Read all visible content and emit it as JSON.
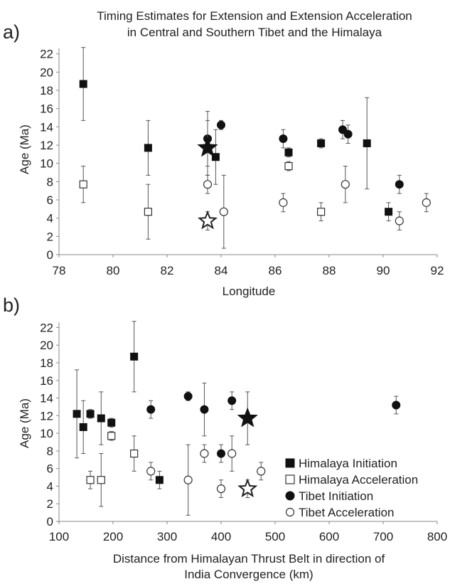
{
  "title": [
    "Timing Estimates for Extension and Extension Acceleration",
    "in Central and Southern Tibet and the Himalaya"
  ],
  "legend": [
    "Himalaya Initiation",
    "Himalaya Acceleration",
    "Tibet Initiation",
    "Tibet Acceleration"
  ],
  "chart_data": [
    {
      "panel": "a)",
      "type": "scatter",
      "xlabel": "Longitude",
      "ylabel": "Age (Ma)",
      "xlim": [
        78,
        92
      ],
      "ylim": [
        0,
        22.6
      ],
      "xticks": [
        78,
        80,
        82,
        84,
        86,
        88,
        90,
        92
      ],
      "yticks": [
        0,
        2,
        4,
        6,
        8,
        10,
        12,
        14,
        16,
        18,
        20,
        22
      ],
      "grid": false,
      "series": [
        {
          "name": "Himalaya Initiation",
          "marker": "square-filled",
          "points": [
            {
              "x": 78.9,
              "y": 18.7,
              "lo": 14.7,
              "hi": 22.7
            },
            {
              "x": 81.3,
              "y": 11.7,
              "lo": 8.7,
              "hi": 14.7
            },
            {
              "x": 83.8,
              "y": 10.7,
              "lo": 7.7,
              "hi": 13.7
            },
            {
              "x": 86.5,
              "y": 11.2,
              "lo": 10.7,
              "hi": 11.7
            },
            {
              "x": 87.7,
              "y": 12.2,
              "lo": 11.7,
              "hi": 12.7
            },
            {
              "x": 89.4,
              "y": 12.2,
              "lo": 7.2,
              "hi": 17.2
            },
            {
              "x": 90.2,
              "y": 4.7,
              "lo": 3.7,
              "hi": 5.7
            }
          ]
        },
        {
          "name": "Himalaya Acceleration",
          "marker": "square-open",
          "points": [
            {
              "x": 78.9,
              "y": 7.7,
              "lo": 5.7,
              "hi": 9.7
            },
            {
              "x": 81.3,
              "y": 4.7,
              "lo": 1.7,
              "hi": 7.7
            },
            {
              "x": 86.5,
              "y": 9.7,
              "lo": 9.2,
              "hi": 10.2
            },
            {
              "x": 87.7,
              "y": 4.7,
              "lo": 3.7,
              "hi": 5.7
            }
          ]
        },
        {
          "name": "Tibet Initiation",
          "marker": "circle-filled",
          "points": [
            {
              "x": 83.5,
              "y": 12.7,
              "lo": 9.7,
              "hi": 15.7
            },
            {
              "x": 84.0,
              "y": 14.2,
              "lo": 13.7,
              "hi": 14.7
            },
            {
              "x": 86.3,
              "y": 12.7,
              "lo": 11.7,
              "hi": 13.7
            },
            {
              "x": 88.5,
              "y": 13.7,
              "lo": 12.7,
              "hi": 14.7
            },
            {
              "x": 88.7,
              "y": 13.2,
              "lo": 12.2,
              "hi": 14.2
            },
            {
              "x": 90.6,
              "y": 7.7,
              "lo": 6.7,
              "hi": 8.7
            }
          ]
        },
        {
          "name": "Tibet Acceleration",
          "marker": "circle-open",
          "points": [
            {
              "x": 83.5,
              "y": 7.7,
              "lo": 6.7,
              "hi": 8.7
            },
            {
              "x": 84.1,
              "y": 4.7,
              "lo": 0.7,
              "hi": 8.7
            },
            {
              "x": 86.3,
              "y": 5.7,
              "lo": 4.7,
              "hi": 6.7
            },
            {
              "x": 88.6,
              "y": 7.7,
              "lo": 5.7,
              "hi": 9.7
            },
            {
              "x": 90.6,
              "y": 3.7,
              "lo": 2.7,
              "hi": 4.7
            },
            {
              "x": 91.6,
              "y": 5.7,
              "lo": 4.7,
              "hi": 6.7
            }
          ]
        },
        {
          "name": "",
          "marker": "star-filled",
          "points": [
            {
              "x": 83.5,
              "y": 11.7,
              "lo": 8.7,
              "hi": 14.7
            }
          ]
        },
        {
          "name": "",
          "marker": "star-open",
          "points": [
            {
              "x": 83.5,
              "y": 3.7,
              "lo": 2.7,
              "hi": 4.7
            }
          ]
        }
      ]
    },
    {
      "panel": "b)",
      "type": "scatter",
      "xlabel": [
        "Distance from Himalayan Thrust Belt in direction of",
        "India Convergence (km)"
      ],
      "ylabel": "Age (Ma)",
      "xlim": [
        100,
        800
      ],
      "ylim": [
        0,
        22.6
      ],
      "xticks": [
        100,
        200,
        300,
        400,
        500,
        600,
        700,
        800
      ],
      "yticks": [
        0,
        2,
        4,
        6,
        8,
        10,
        12,
        14,
        16,
        18,
        20,
        22
      ],
      "grid": false,
      "legend_position": "bottom-right",
      "series": [
        {
          "name": "Himalaya Initiation",
          "marker": "square-filled",
          "points": [
            {
              "x": 133,
              "y": 12.2,
              "lo": 7.2,
              "hi": 17.2
            },
            {
              "x": 145,
              "y": 10.7,
              "lo": 7.7,
              "hi": 13.7
            },
            {
              "x": 158,
              "y": 12.2,
              "lo": 11.7,
              "hi": 12.7
            },
            {
              "x": 178,
              "y": 11.7,
              "lo": 8.7,
              "hi": 14.7
            },
            {
              "x": 197,
              "y": 11.2,
              "lo": 10.7,
              "hi": 11.7
            },
            {
              "x": 239,
              "y": 18.7,
              "lo": 14.7,
              "hi": 22.7
            },
            {
              "x": 286,
              "y": 4.7,
              "lo": 3.7,
              "hi": 5.7
            }
          ]
        },
        {
          "name": "Himalaya Acceleration",
          "marker": "square-open",
          "points": [
            {
              "x": 158,
              "y": 4.7,
              "lo": 3.7,
              "hi": 5.7
            },
            {
              "x": 178,
              "y": 4.7,
              "lo": 1.7,
              "hi": 7.7
            },
            {
              "x": 197,
              "y": 9.7,
              "lo": 9.2,
              "hi": 10.2
            },
            {
              "x": 239,
              "y": 7.7,
              "lo": 5.7,
              "hi": 9.7
            }
          ]
        },
        {
          "name": "Tibet Initiation",
          "marker": "circle-filled",
          "points": [
            {
              "x": 270,
              "y": 12.7,
              "lo": 11.7,
              "hi": 13.7
            },
            {
              "x": 339,
              "y": 14.2,
              "lo": 13.7,
              "hi": 14.7
            },
            {
              "x": 369,
              "y": 12.7,
              "lo": 9.7,
              "hi": 15.7
            },
            {
              "x": 400,
              "y": 7.7,
              "lo": 6.7,
              "hi": 8.7
            },
            {
              "x": 420,
              "y": 13.7,
              "lo": 12.7,
              "hi": 14.7
            },
            {
              "x": 724,
              "y": 13.2,
              "lo": 12.2,
              "hi": 14.2
            }
          ]
        },
        {
          "name": "Tibet Acceleration",
          "marker": "circle-open",
          "points": [
            {
              "x": 270,
              "y": 5.7,
              "lo": 4.7,
              "hi": 6.7
            },
            {
              "x": 339,
              "y": 4.7,
              "lo": 0.7,
              "hi": 8.7
            },
            {
              "x": 369,
              "y": 7.7,
              "lo": 6.7,
              "hi": 8.7
            },
            {
              "x": 400,
              "y": 3.7,
              "lo": 2.7,
              "hi": 4.7
            },
            {
              "x": 420,
              "y": 7.7,
              "lo": 5.7,
              "hi": 9.7
            },
            {
              "x": 474,
              "y": 5.7,
              "lo": 4.7,
              "hi": 6.7
            }
          ]
        },
        {
          "name": "",
          "marker": "star-filled",
          "points": [
            {
              "x": 449,
              "y": 11.7,
              "lo": 8.7,
              "hi": 14.7
            }
          ]
        },
        {
          "name": "",
          "marker": "star-open",
          "points": [
            {
              "x": 449,
              "y": 3.7,
              "lo": 2.7,
              "hi": 4.7
            }
          ]
        }
      ]
    }
  ]
}
